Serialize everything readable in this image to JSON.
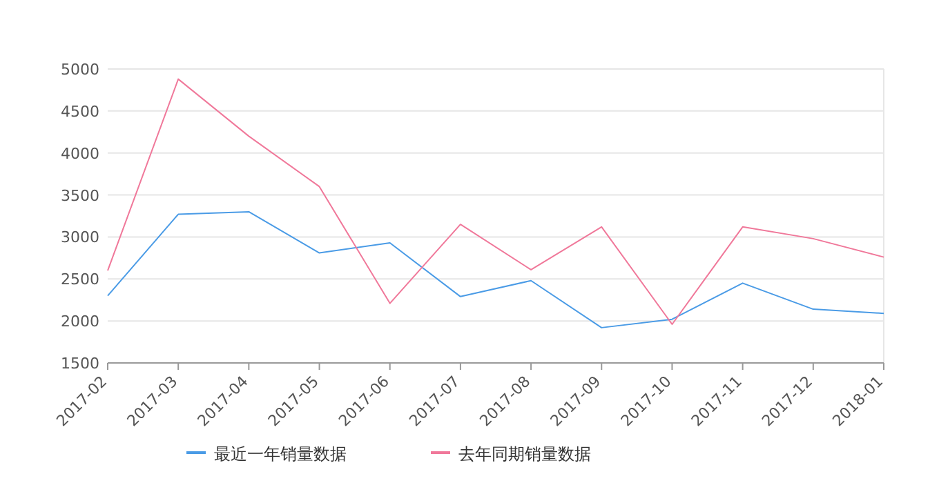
{
  "chart_data": {
    "type": "line",
    "categories": [
      "2017-02",
      "2017-03",
      "2017-04",
      "2017-05",
      "2017-06",
      "2017-07",
      "2017-08",
      "2017-09",
      "2017-10",
      "2017-11",
      "2017-12",
      "2018-01"
    ],
    "series": [
      {
        "name": "最近一年销量数据",
        "color": "#4a9be6",
        "values": [
          2300,
          3270,
          3300,
          2810,
          2930,
          2290,
          2480,
          1920,
          2020,
          2450,
          2140,
          2090
        ]
      },
      {
        "name": "去年同期销量数据",
        "color": "#f0789a",
        "values": [
          2600,
          4880,
          4200,
          3600,
          2210,
          3150,
          2610,
          3120,
          1960,
          3120,
          2980,
          2760
        ]
      }
    ],
    "ylim": [
      1500,
      5000
    ],
    "yticks": [
      1500,
      2000,
      2500,
      3000,
      3500,
      4000,
      4500,
      5000
    ],
    "grid": "y",
    "legend": "bottom",
    "marker": "none",
    "line_style": "solid"
  }
}
